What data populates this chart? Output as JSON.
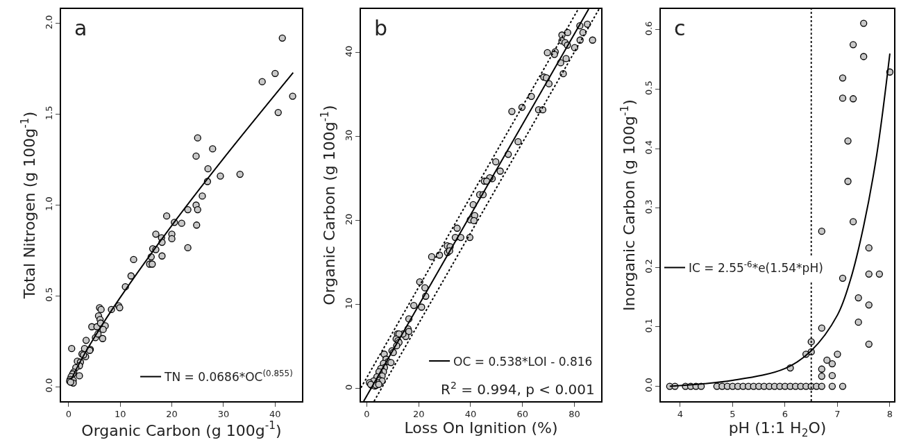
{
  "chart_data": [
    {
      "type": "scatter",
      "title": "a",
      "xlabel": "Organic Carbon (g 100g$^{-1}$)",
      "ylabel": "Total Nitrogen (g 100g$^{-1}$)",
      "xlim": [
        -1.45,
        45.2
      ],
      "ylim": [
        -0.08,
        2.08
      ],
      "xticks": [
        0,
        10,
        20,
        30,
        40
      ],
      "yticks": [
        {
          "value": 0,
          "label": "0.0"
        },
        {
          "value": 0.5,
          "label": "0.5"
        },
        {
          "value": 1,
          "label": "1.0"
        },
        {
          "value": 1.5,
          "label": "1.5"
        },
        {
          "value": 2,
          "label": "2.0"
        }
      ],
      "grid": false,
      "legend": "bottom right",
      "marker": "circle",
      "series": [
        {
          "color": "#c8c8c8",
          "x": [
            41.4,
            40.0,
            37.5,
            43.4,
            40.6,
            25.0,
            24.7,
            27.9,
            27.0,
            29.4,
            33.2,
            26.9,
            25.9,
            23.1,
            24.7,
            25.0,
            24.8,
            19.0,
            20.5,
            21.9,
            20.0,
            20.0,
            16.9,
            18.0,
            18.1,
            23.1,
            16.3,
            16.9,
            18.1,
            16.0,
            15.7,
            16.2,
            12.6,
            12.1,
            11.0,
            8.3,
            9.7,
            9.9,
            6.0,
            6.3,
            5.8,
            6.1,
            4.5,
            5.5,
            6.2,
            7.1,
            6.7,
            6.6,
            5.2,
            5.7,
            3.4,
            3.1,
            4.2,
            4.1,
            3.3,
            2.6,
            2.9,
            0.6,
            1.7,
            2.3,
            2.1,
            1.4,
            2.1,
            1.0,
            0.8,
            0.5,
            0.3,
            0.2,
            0.9,
            0.9,
            0.4
          ],
          "values": [
            1.92,
            1.725,
            1.68,
            1.6,
            1.51,
            1.37,
            1.27,
            1.31,
            1.2,
            1.16,
            1.17,
            1.13,
            1.05,
            0.975,
            1.0,
            0.975,
            0.89,
            0.94,
            0.905,
            0.9,
            0.84,
            0.815,
            0.84,
            0.82,
            0.795,
            0.765,
            0.76,
            0.755,
            0.72,
            0.715,
            0.675,
            0.675,
            0.7,
            0.61,
            0.55,
            0.425,
            0.445,
            0.435,
            0.435,
            0.425,
            0.39,
            0.37,
            0.33,
            0.33,
            0.35,
            0.335,
            0.315,
            0.265,
            0.27,
            0.29,
            0.255,
            0.21,
            0.205,
            0.2,
            0.165,
            0.18,
            0.175,
            0.21,
            0.14,
            0.135,
            0.115,
            0.105,
            0.06,
            0.08,
            0.07,
            0.055,
            0.04,
            0.03,
            0.035,
            0.02,
            0.025
          ]
        },
        {
          "type": "line",
          "name": "TN = 0.0686*OC$^{(0.855)}$",
          "color": "#000000",
          "line_style": "solid",
          "marker": "none",
          "x": [
            0.5,
            2,
            5,
            10,
            20,
            30,
            43.5
          ],
          "values": [
            0.038,
            0.124,
            0.272,
            0.491,
            0.888,
            1.257,
            1.73
          ]
        }
      ]
    },
    {
      "type": "scatter",
      "title": "b",
      "xlabel": "Loss On Ignition (%)",
      "ylabel": "Organic Carbon (g 100g$^{-1}$)",
      "xlim": [
        -2.26,
        90.3
      ],
      "ylim": [
        -1.5,
        45.2
      ],
      "xticks": [
        0,
        20,
        40,
        60,
        80
      ],
      "yticks": [
        0,
        10,
        20,
        30,
        40
      ],
      "grid": false,
      "legend": "bottom right",
      "marker": "circle",
      "annotations": [
        "R$^{2}$ = 0.994, p < 0.001"
      ],
      "series": [
        {
          "color": "#c8c8c8",
          "x": [
            82.1,
            85.0,
            77.4,
            75.2,
            83.3,
            75.2,
            76.4,
            77.3,
            82.2,
            87.0,
            80.1,
            69.6,
            72.6,
            72.3,
            76.8,
            74.7,
            75.7,
            68.2,
            69.2,
            70.2,
            63.4,
            59.8,
            55.9,
            66.2,
            67.8,
            58.3,
            54.5,
            49.7,
            51.4,
            48.3,
            47.4,
            45.3,
            46.2,
            43.5,
            44.8,
            41.0,
            41.6,
            39.9,
            41.3,
            39.7,
            34.8,
            34.1,
            36.2,
            31.0,
            32.1,
            31.1,
            31.9,
            28.0,
            25.0,
            20.4,
            22.4,
            22.7,
            18.1,
            21.1,
            16.2,
            15.9,
            16.2,
            15.0,
            13.9,
            11.8,
            12.4,
            11.3,
            12.0,
            12.4,
            11.5,
            9.7,
            10.2,
            6.7,
            7.4,
            8.2,
            9.3,
            6.4,
            6.8,
            5.4,
            6.4,
            4.7,
            5.9,
            3.9,
            4.9,
            5.9,
            4.1,
            2.6,
            1.0,
            1.9,
            3.1,
            1.5,
            3.6,
            4.6
          ],
          "values": [
            43.2,
            43.4,
            42.4,
            42.1,
            42.4,
            41.4,
            41.2,
            40.9,
            41.5,
            41.5,
            40.6,
            40.0,
            40.1,
            39.8,
            39.3,
            38.8,
            37.5,
            37.1,
            37.0,
            36.3,
            34.8,
            33.5,
            33.0,
            33.2,
            33.2,
            29.4,
            27.9,
            27.0,
            25.9,
            25.0,
            25.1,
            24.7,
            24.7,
            23.1,
            23.1,
            21.9,
            20.6,
            20.1,
            20.0,
            18.0,
            19.1,
            18.0,
            18.0,
            17.0,
            16.9,
            16.2,
            16.4,
            15.9,
            15.7,
            12.7,
            12.0,
            11.0,
            9.9,
            9.7,
            8.3,
            7.1,
            6.8,
            6.2,
            6.5,
            6.5,
            6.5,
            5.9,
            5.7,
            5.5,
            5.1,
            4.5,
            4.3,
            4.1,
            3.5,
            3.2,
            3.1,
            3.0,
            2.5,
            2.4,
            2.0,
            2.0,
            1.5,
            1.4,
            1.0,
            0.9,
            0.7,
            0.9,
            0.7,
            0.4,
            0.3,
            0.5,
            0.4,
            0.5
          ]
        },
        {
          "type": "line",
          "name": "OC = 0.538*LOI - 0.816",
          "color": "#000000",
          "line_style": "solid",
          "marker": "none",
          "x": [
            -1.2,
            85.5
          ],
          "values": [
            -1.5,
            45.2
          ]
        },
        {
          "type": "line",
          "color": "#000000",
          "line_style": "dotted",
          "marker": "none",
          "x": [
            -2.26,
            81.5
          ],
          "values": [
            0.1,
            45.2
          ]
        },
        {
          "type": "line",
          "color": "#000000",
          "line_style": "dotted",
          "marker": "none",
          "x": [
            2.8,
            89.5
          ],
          "values": [
            -1.5,
            45.2
          ]
        }
      ]
    },
    {
      "type": "scatter",
      "title": "c",
      "xlabel": "pH (1:1 H$_{2}$O)",
      "ylabel": "Inorganic Carbon (g 100g$^{-1}$)",
      "xlim": [
        3.63,
        8.08
      ],
      "ylim": [
        -0.025,
        0.635
      ],
      "xticks": [
        4,
        5,
        6,
        7,
        8
      ],
      "yticks": [
        {
          "value": 0,
          "label": "0.0"
        },
        {
          "value": 0.1,
          "label": "0.1"
        },
        {
          "value": 0.2,
          "label": "0.2"
        },
        {
          "value": 0.3,
          "label": "0.3"
        },
        {
          "value": 0.4,
          "label": "0.4"
        },
        {
          "value": 0.5,
          "label": "0.5"
        },
        {
          "value": 0.6,
          "label": "0.6"
        }
      ],
      "grid": false,
      "legend": "left",
      "marker": "circle",
      "ref_lines": [
        {
          "axis": "x",
          "value": 6.5,
          "line_style": "dotted",
          "color": "#000000"
        }
      ],
      "series": [
        {
          "color": "#c8c8c8",
          "x": [
            7.5,
            7.3,
            7.5,
            8.0,
            7.1,
            7.1,
            7.3,
            7.2,
            7.2,
            7.3,
            6.7,
            7.6,
            7.6,
            7.8,
            7.1,
            7.4,
            7.6,
            7.4,
            6.7,
            7.6,
            6.5,
            6.4,
            6.5,
            7.0,
            6.8,
            6.9,
            6.1,
            6.7,
            6.7,
            6.9,
            3.8,
            3.9,
            4.1,
            4.2,
            4.3,
            4.4,
            4.7,
            4.8,
            4.9,
            5.0,
            5.1,
            5.2,
            5.3,
            5.4,
            5.5,
            5.6,
            5.7,
            5.8,
            5.9,
            6.0,
            6.1,
            6.2,
            6.3,
            6.4,
            6.5,
            6.6,
            6.7,
            6.9,
            7.1
          ],
          "values": [
            0.611,
            0.575,
            0.555,
            0.529,
            0.519,
            0.485,
            0.484,
            0.413,
            0.345,
            0.277,
            0.261,
            0.233,
            0.189,
            0.189,
            0.182,
            0.149,
            0.137,
            0.108,
            0.098,
            0.071,
            0.075,
            0.054,
            0.058,
            0.054,
            0.044,
            0.038,
            0.031,
            0.029,
            0.017,
            0.018,
            0,
            0,
            0,
            0,
            0,
            0,
            0,
            0,
            0,
            0,
            0,
            0,
            0,
            0,
            0,
            0,
            0,
            0,
            0,
            0,
            0,
            0,
            0,
            0,
            0,
            0,
            0,
            0,
            0
          ]
        },
        {
          "type": "line",
          "name": "IC = 2.55$^{-6}$*e(1.54*pH)",
          "color": "#000000",
          "line_style": "solid",
          "marker": "none",
          "x": [
            3.8,
            5,
            6,
            6.5,
            7,
            7.25,
            7.5,
            7.75,
            8
          ],
          "values": [
            0.0,
            0.01,
            0.03,
            0.06,
            0.12,
            0.18,
            0.27,
            0.39,
            0.56
          ]
        }
      ]
    }
  ]
}
